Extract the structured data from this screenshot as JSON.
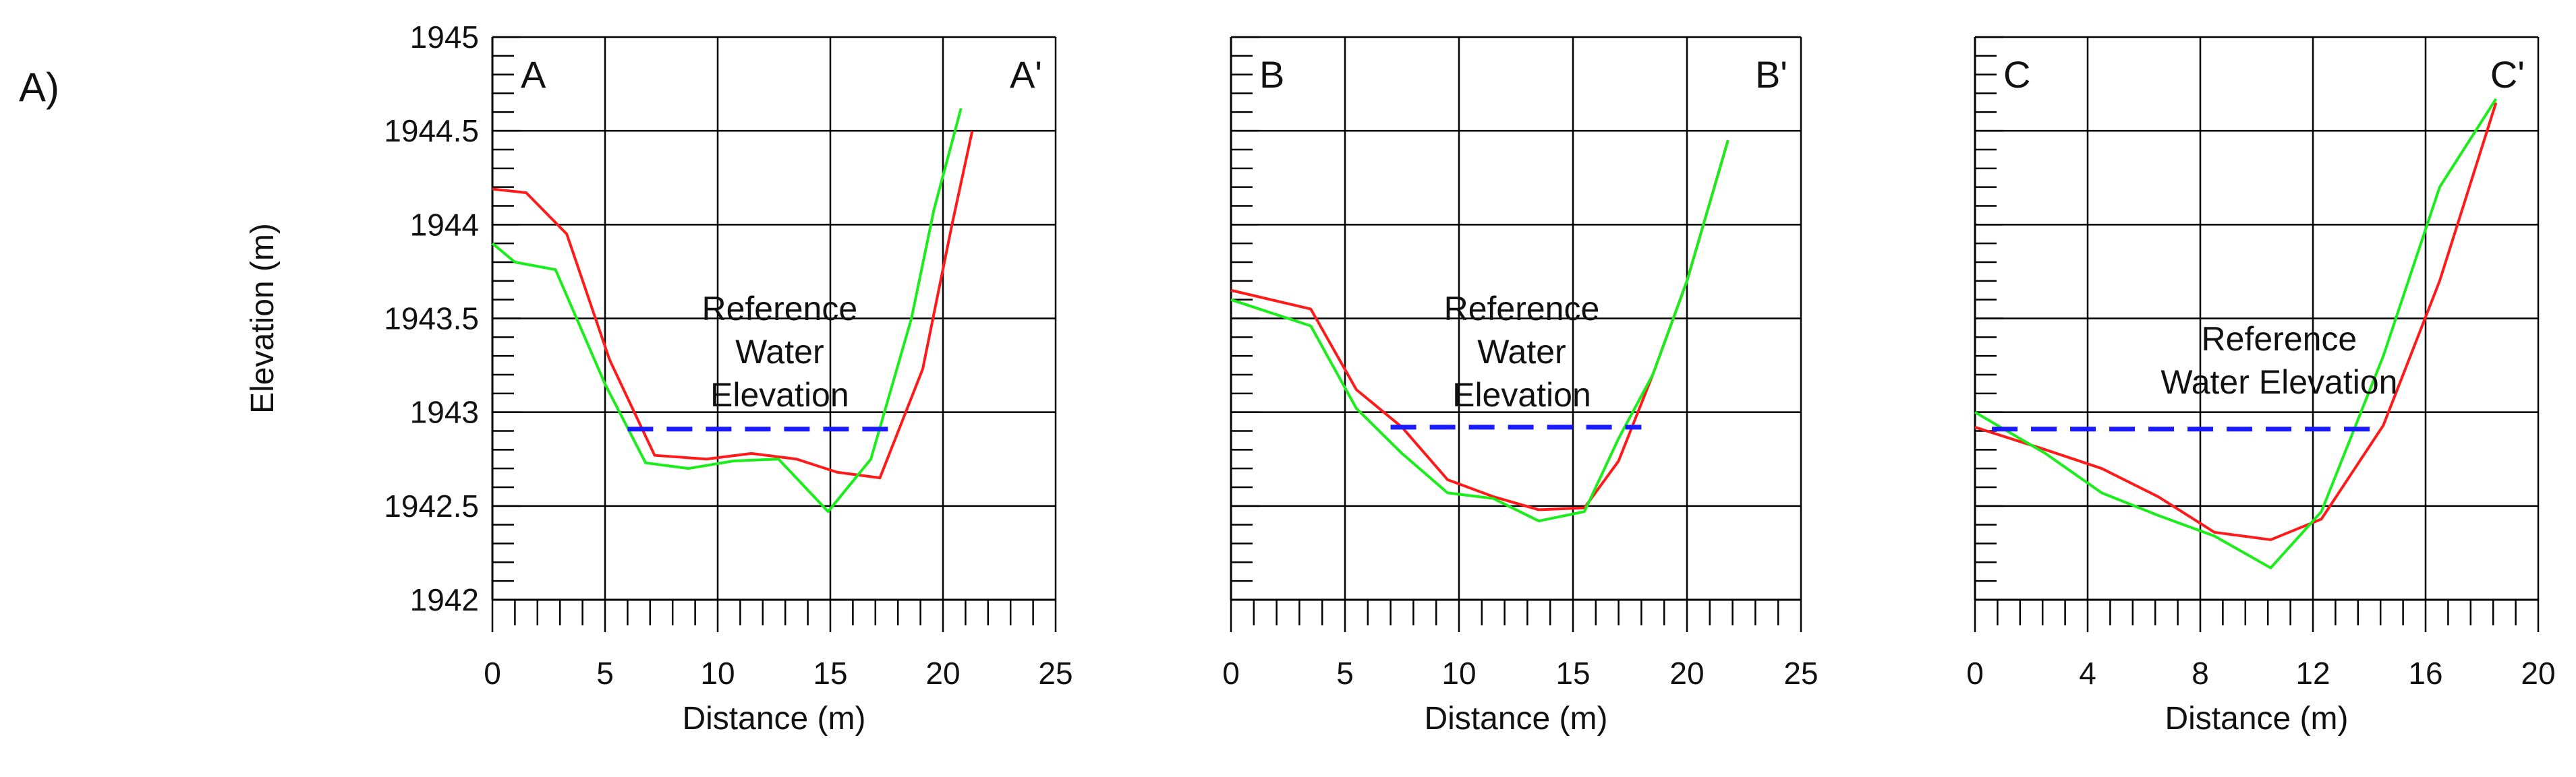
{
  "figure_label": "A)",
  "chart_data": [
    {
      "type": "line",
      "panel_id": "panel-a",
      "xlabel": "Distance (m)",
      "ylabel": "Elevation (m)",
      "xlim": [
        0,
        25
      ],
      "ylim": [
        1942,
        1945
      ],
      "x_ticks": [
        0,
        5,
        10,
        15,
        20,
        25
      ],
      "x_tick_labels": [
        "0",
        "5",
        "10",
        "15",
        "20",
        "25"
      ],
      "y_ticks": [
        1942,
        1942.5,
        1943,
        1943.5,
        1944,
        1944.5,
        1945
      ],
      "y_tick_labels": [
        "1942",
        "1942.5",
        "1943",
        "1943.5",
        "1944",
        "1944.5",
        "1945"
      ],
      "corner_left": "A",
      "corner_right": "A'",
      "annotation_lines": [
        "Reference",
        "Water",
        "Elevation"
      ],
      "reference_line": {
        "y": 1942.91,
        "x": [
          6,
          17.8
        ],
        "color": "#1a1aff"
      },
      "series": [
        {
          "name": "red",
          "color": "#ff1a1a",
          "x": [
            0,
            1.5,
            3.3,
            5.2,
            7.2,
            9.5,
            11.5,
            13.5,
            15.3,
            17.2,
            19.1,
            20.4,
            21.3
          ],
          "y": [
            1944.19,
            1944.17,
            1943.95,
            1943.28,
            1942.77,
            1942.75,
            1942.78,
            1942.75,
            1942.68,
            1942.65,
            1943.23,
            1944.0,
            1944.5
          ]
        },
        {
          "name": "green",
          "color": "#1aee1a",
          "x": [
            0,
            1,
            2.8,
            5,
            6.8,
            8.7,
            10.7,
            12.7,
            14.9,
            16.8,
            18.6,
            19.6,
            20.8
          ],
          "y": [
            1943.9,
            1943.8,
            1943.76,
            1943.15,
            1942.73,
            1942.7,
            1942.74,
            1942.75,
            1942.47,
            1942.75,
            1943.5,
            1944.08,
            1944.62
          ]
        }
      ]
    },
    {
      "type": "line",
      "panel_id": "panel-b",
      "xlabel": "Distance (m)",
      "ylabel": "",
      "xlim": [
        0,
        25
      ],
      "ylim": [
        1942,
        1945
      ],
      "x_ticks": [
        0,
        5,
        10,
        15,
        20,
        25
      ],
      "x_tick_labels": [
        "0",
        "5",
        "10",
        "15",
        "20",
        "25"
      ],
      "y_ticks": [],
      "y_tick_labels": [],
      "corner_left": "B",
      "corner_right": "B'",
      "annotation_lines": [
        "Reference",
        "Water",
        "Elevation"
      ],
      "reference_line": {
        "y": 1942.92,
        "x": [
          7,
          18
        ],
        "color": "#1a1aff"
      },
      "series": [
        {
          "name": "red",
          "color": "#ff1a1a",
          "x": [
            0,
            3.5,
            5.5,
            7.5,
            9.5,
            11.5,
            13.5,
            15.5,
            17,
            18.5,
            20,
            21.8
          ],
          "y": [
            1943.65,
            1943.55,
            1943.12,
            1942.92,
            1942.64,
            1942.55,
            1942.48,
            1942.49,
            1942.74,
            1943.2,
            1943.7,
            1944.45
          ]
        },
        {
          "name": "green",
          "color": "#1aee1a",
          "x": [
            0,
            3.5,
            5.5,
            7.5,
            9.5,
            11.5,
            13.5,
            15.5,
            17,
            18.5,
            20,
            21.8
          ],
          "y": [
            1943.6,
            1943.46,
            1943.02,
            1942.78,
            1942.57,
            1942.54,
            1942.42,
            1942.47,
            1942.86,
            1943.2,
            1943.7,
            1944.45
          ]
        }
      ]
    },
    {
      "type": "line",
      "panel_id": "panel-c",
      "xlabel": "Distance (m)",
      "ylabel": "",
      "xlim": [
        0,
        20
      ],
      "ylim": [
        1942,
        1945
      ],
      "x_ticks": [
        0,
        4,
        8,
        12,
        16,
        20
      ],
      "x_tick_labels": [
        "0",
        "4",
        "8",
        "12",
        "16",
        "20"
      ],
      "y_ticks": [],
      "y_tick_labels": [],
      "corner_left": "C",
      "corner_right": "C'",
      "annotation_lines": [
        "Reference",
        "Water Elevation"
      ],
      "reference_line": {
        "y": 1942.91,
        "x": [
          0.6,
          14.2
        ],
        "color": "#1a1aff"
      },
      "series": [
        {
          "name": "red",
          "color": "#ff1a1a",
          "x": [
            0,
            2.5,
            4.5,
            6.5,
            8.5,
            10.5,
            12.3,
            14.5,
            16.5,
            18.5
          ],
          "y": [
            1942.92,
            1942.8,
            1942.7,
            1942.55,
            1942.36,
            1942.32,
            1942.43,
            1942.93,
            1943.7,
            1944.65
          ]
        },
        {
          "name": "green",
          "color": "#1aee1a",
          "x": [
            0,
            2.5,
            4.5,
            6.5,
            8.5,
            10.5,
            12.3,
            14.5,
            16.5,
            18.5
          ],
          "y": [
            1943.0,
            1942.78,
            1942.57,
            1942.45,
            1942.34,
            1942.17,
            1942.47,
            1943.3,
            1944.2,
            1944.67
          ]
        }
      ]
    }
  ]
}
